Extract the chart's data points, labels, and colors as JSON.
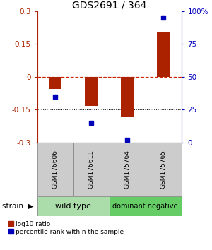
{
  "title": "GDS2691 / 364",
  "samples": [
    "GSM176606",
    "GSM176611",
    "GSM175764",
    "GSM175765"
  ],
  "log10_ratio": [
    -0.055,
    -0.132,
    -0.183,
    0.205
  ],
  "percentile_rank": [
    35,
    15,
    2,
    95
  ],
  "groups": [
    {
      "label": "wild type",
      "samples": [
        0,
        1
      ],
      "color": "#aaddaa"
    },
    {
      "label": "dominant negative",
      "samples": [
        2,
        3
      ],
      "color": "#66cc66"
    }
  ],
  "ylim": [
    -0.3,
    0.3
  ],
  "yticks_left": [
    -0.3,
    -0.15,
    0,
    0.15,
    0.3
  ],
  "yticks_right": [
    0,
    25,
    50,
    75,
    100
  ],
  "bar_color": "#aa2200",
  "dot_color": "#0000bb",
  "zero_line_color": "#cc2200",
  "grid_color": "#000000",
  "bar_width": 0.35,
  "legend_red_label": "log10 ratio",
  "legend_blue_label": "percentile rank within the sample",
  "sample_box_color": "#cccccc",
  "sample_box_edge": "#888888",
  "fig_width": 3.0,
  "fig_height": 3.54,
  "dpi": 100
}
